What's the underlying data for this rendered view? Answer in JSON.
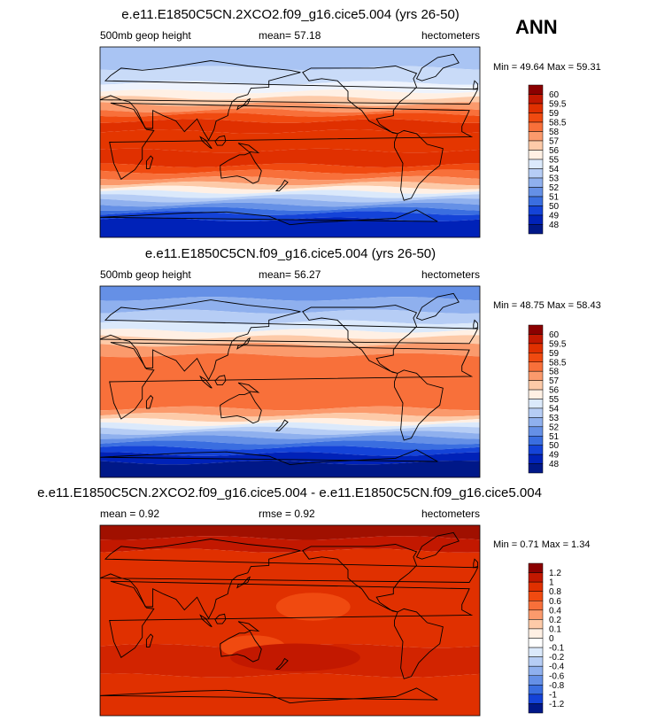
{
  "season": "ANN",
  "panels": [
    {
      "title": "e.e11.E1850C5CN.2XCO2.f09_g16.cice5.004 (yrs 26-50)",
      "left_label": "500mb geop height",
      "center_label": "mean=  57.18",
      "right_label": "hectometers",
      "minmax": "Min =  49.64 Max =  59.31",
      "colorbar": [
        "60",
        "59.5",
        "59",
        "58.5",
        "58",
        "57",
        "56",
        "55",
        "54",
        "53",
        "52",
        "51",
        "50",
        "49",
        "48"
      ],
      "colors": [
        "#8b0000",
        "#c21800",
        "#e03000",
        "#f04a10",
        "#f8703a",
        "#fb9a6c",
        "#fdcaa8",
        "#fff0e4",
        "#dbe9fb",
        "#b6cdf5",
        "#8fb0ee",
        "#6590e6",
        "#3a6ee0",
        "#1443d8",
        "#0022b8",
        "#001888"
      ],
      "bands": [
        {
          "lat": 90,
          "color": "#a9c4f3"
        },
        {
          "lat": 70,
          "color": "#c9dbf8"
        },
        {
          "lat": 56,
          "color": "#eef3fd"
        },
        {
          "lat": 48,
          "color": "#fff0e4"
        },
        {
          "lat": 42,
          "color": "#fdcaa8"
        },
        {
          "lat": 36,
          "color": "#fb9a6c"
        },
        {
          "lat": 30,
          "color": "#f8703a"
        },
        {
          "lat": 26,
          "color": "#f04a10"
        },
        {
          "lat": 20,
          "color": "#e03000"
        },
        {
          "lat": 10,
          "color": "#e43600"
        },
        {
          "lat": -8,
          "color": "#e03000"
        },
        {
          "lat": -22,
          "color": "#f04a10"
        },
        {
          "lat": -28,
          "color": "#f8703a"
        },
        {
          "lat": -34,
          "color": "#fb9a6c"
        },
        {
          "lat": -39,
          "color": "#fdcaa8"
        },
        {
          "lat": -43,
          "color": "#fff0e4"
        },
        {
          "lat": -47,
          "color": "#dbe9fb"
        },
        {
          "lat": -51,
          "color": "#b6cdf5"
        },
        {
          "lat": -55,
          "color": "#8fb0ee"
        },
        {
          "lat": -59,
          "color": "#6590e6"
        },
        {
          "lat": -63,
          "color": "#3a6ee0"
        },
        {
          "lat": -67,
          "color": "#1443d8"
        },
        {
          "lat": -73,
          "color": "#0022b8"
        }
      ]
    },
    {
      "title": "e.e11.E1850C5CN.f09_g16.cice5.004 (yrs 26-50)",
      "left_label": "500mb geop height",
      "center_label": "mean=  56.27",
      "right_label": "hectometers",
      "minmax": "Min =  48.75 Max =  58.43",
      "colorbar": [
        "60",
        "59.5",
        "59",
        "58.5",
        "58",
        "57",
        "56",
        "55",
        "54",
        "53",
        "52",
        "51",
        "50",
        "49",
        "48"
      ],
      "colors": [
        "#8b0000",
        "#c21800",
        "#e03000",
        "#f04a10",
        "#f8703a",
        "#fb9a6c",
        "#fdcaa8",
        "#fff0e4",
        "#dbe9fb",
        "#b6cdf5",
        "#8fb0ee",
        "#6590e6",
        "#3a6ee0",
        "#1443d8",
        "#0022b8",
        "#001888"
      ],
      "bands": [
        {
          "lat": 90,
          "color": "#6590e6"
        },
        {
          "lat": 78,
          "color": "#8fb0ee"
        },
        {
          "lat": 66,
          "color": "#b6cdf5"
        },
        {
          "lat": 56,
          "color": "#dbe9fb"
        },
        {
          "lat": 48,
          "color": "#fff0e4"
        },
        {
          "lat": 42,
          "color": "#fdcaa8"
        },
        {
          "lat": 35,
          "color": "#fb9a6c"
        },
        {
          "lat": 25,
          "color": "#f8703a"
        },
        {
          "lat": -25,
          "color": "#fb9a6c"
        },
        {
          "lat": -31,
          "color": "#fdcaa8"
        },
        {
          "lat": -36,
          "color": "#fff0e4"
        },
        {
          "lat": -40,
          "color": "#dbe9fb"
        },
        {
          "lat": -44,
          "color": "#b6cdf5"
        },
        {
          "lat": -48,
          "color": "#8fb0ee"
        },
        {
          "lat": -52,
          "color": "#6590e6"
        },
        {
          "lat": -57,
          "color": "#3a6ee0"
        },
        {
          "lat": -62,
          "color": "#1443d8"
        },
        {
          "lat": -68,
          "color": "#0022b8"
        },
        {
          "lat": -76,
          "color": "#001888"
        }
      ]
    },
    {
      "title": "e.e11.E1850C5CN.2XCO2.f09_g16.cice5.004 - e.e11.E1850C5CN.f09_g16.cice5.004",
      "left_label": "mean =   0.92",
      "center_label": "rmse =   0.92",
      "right_label": "hectometers",
      "minmax": "Min =  0.71 Max =  1.34",
      "colorbar": [
        "1.2",
        "1",
        "0.8",
        "0.6",
        "0.4",
        "0.2",
        "0.1",
        "0",
        "-0.1",
        "-0.2",
        "-0.4",
        "-0.6",
        "-0.8",
        "-1",
        "-1.2"
      ],
      "colors": [
        "#8b0000",
        "#c21800",
        "#e03000",
        "#f04a10",
        "#f8703a",
        "#fb9a6c",
        "#fdcaa8",
        "#fff0e4",
        "#ffffff",
        "#dbe9fb",
        "#b6cdf5",
        "#8fb0ee",
        "#6590e6",
        "#3a6ee0",
        "#1443d8",
        "#001888"
      ],
      "bands": [
        {
          "lat": 90,
          "color": "#a01000"
        },
        {
          "lat": 78,
          "color": "#c21800"
        },
        {
          "lat": 66,
          "color": "#e03000"
        },
        {
          "lat": -24,
          "color": "#d22400"
        },
        {
          "lat": -52,
          "color": "#e03000"
        }
      ]
    }
  ]
}
